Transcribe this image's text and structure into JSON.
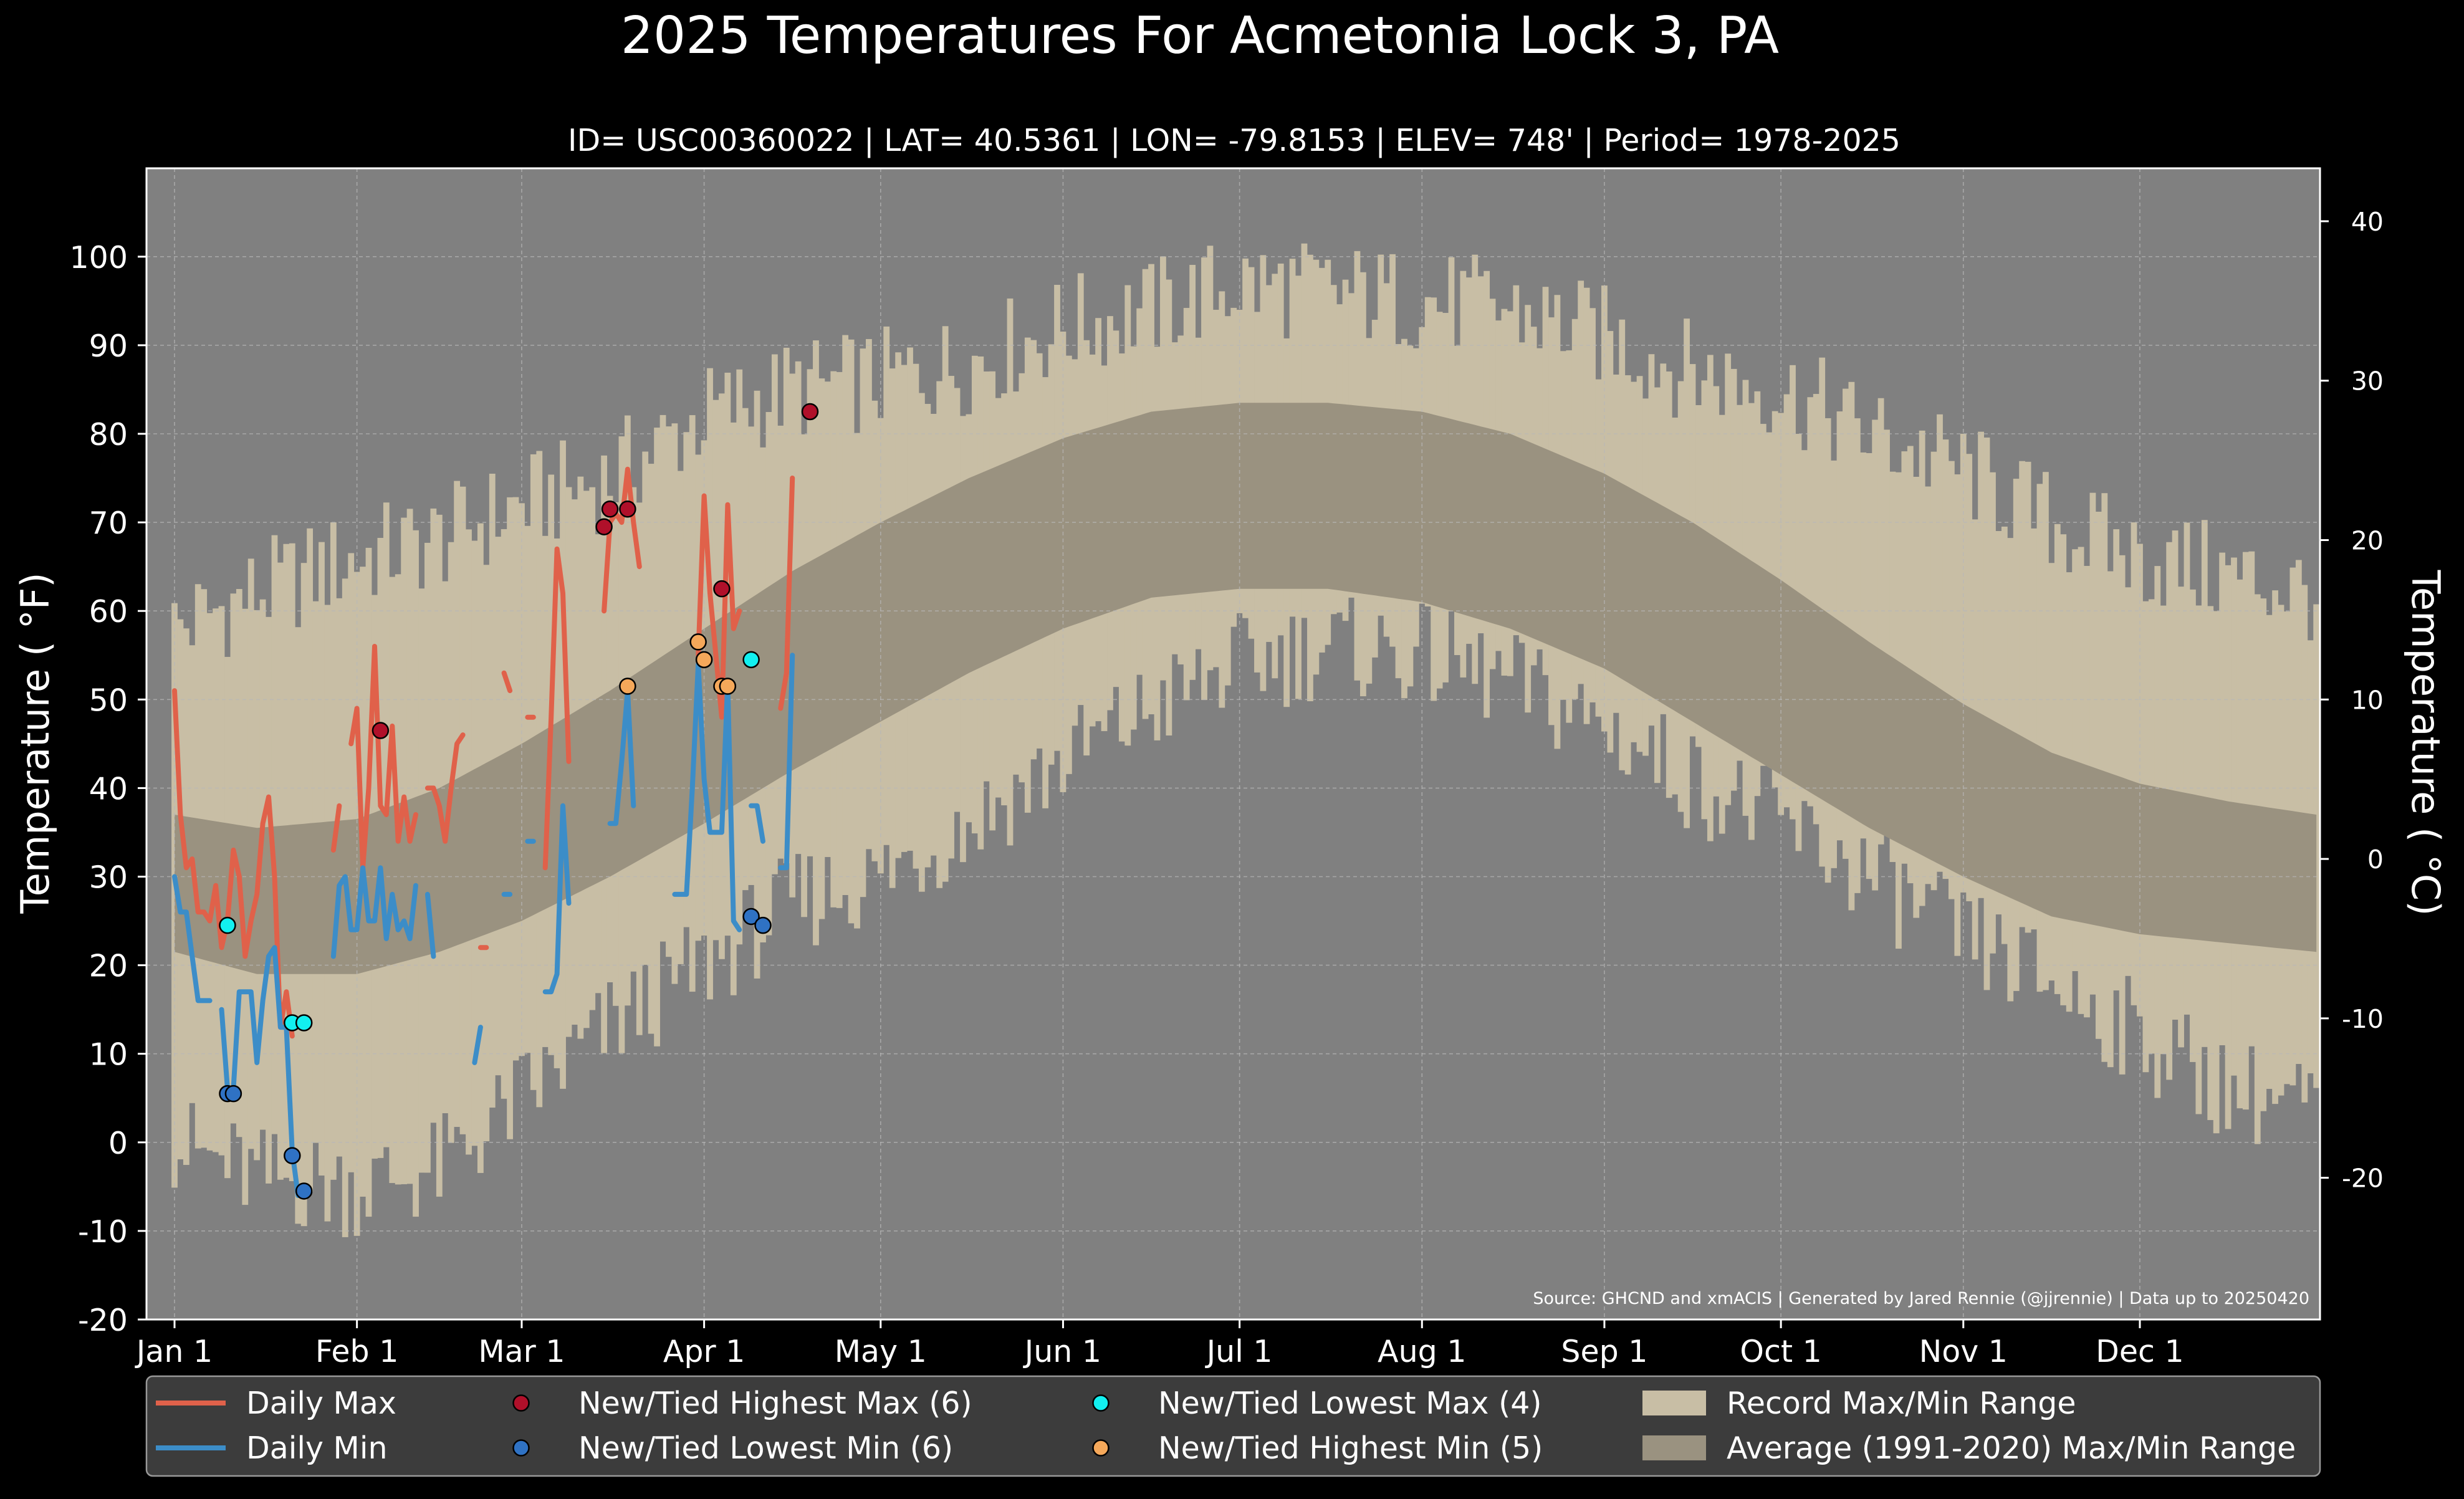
{
  "chart_data": {
    "type": "line",
    "title": "2025 Temperatures For Acmetonia Lock 3, PA",
    "subtitle": "ID= USC00360022 | LAT= 40.5361 | LON= -79.8153 | ELEV= 748' | Period= 1978-2025",
    "ylabel_left": "Temperature ( °F)",
    "ylabel_right": "Temperature ( °C)",
    "source": "Source: GHCND and xmACIS | Generated by Jared Rennie (@jjrennie) | Data up to 20250420",
    "ylim_f": [
      -20,
      110
    ],
    "yticks_f": [
      -20,
      -10,
      0,
      10,
      20,
      30,
      40,
      50,
      60,
      70,
      80,
      90,
      100
    ],
    "yticks_c": [
      -20,
      -10,
      0,
      10,
      20,
      30,
      40
    ],
    "x_months": [
      "Jan 1",
      "Feb 1",
      "Mar 1",
      "Apr 1",
      "May 1",
      "Jun 1",
      "Jul 1",
      "Aug 1",
      "Sep 1",
      "Oct 1",
      "Nov 1",
      "Dec 1"
    ],
    "x_month_start_day": [
      1,
      32,
      60,
      91,
      121,
      152,
      182,
      213,
      244,
      274,
      305,
      335
    ],
    "grid": true,
    "legend_position": "bottom",
    "record_range": {
      "days": [
        1,
        15,
        32,
        46,
        60,
        75,
        91,
        106,
        121,
        136,
        152,
        167,
        182,
        197,
        213,
        228,
        244,
        259,
        274,
        289,
        305,
        320,
        335,
        350,
        365
      ],
      "max": [
        58,
        62,
        66,
        68,
        72,
        75,
        82,
        85,
        86,
        88,
        92,
        94,
        97,
        96,
        95,
        94,
        91,
        87,
        85,
        80,
        76,
        70,
        66,
        64,
        62
      ],
      "min": [
        0,
        -4,
        -5,
        -3,
        5,
        13,
        20,
        27,
        30,
        36,
        43,
        49,
        54,
        56,
        55,
        52,
        47,
        41,
        36,
        30,
        23,
        18,
        12,
        6,
        4
      ]
    },
    "normal_range": {
      "days": [
        1,
        15,
        32,
        46,
        60,
        75,
        91,
        106,
        121,
        136,
        152,
        167,
        182,
        197,
        213,
        228,
        244,
        259,
        274,
        289,
        305,
        320,
        335,
        350,
        365
      ],
      "max": [
        37,
        35.5,
        36.5,
        40,
        45,
        51,
        58,
        64.5,
        70,
        75,
        79.5,
        82.5,
        83.5,
        83.5,
        82.5,
        80,
        75.5,
        70,
        63.5,
        56.5,
        49.5,
        44,
        40.5,
        38.5,
        37
      ],
      "min": [
        21.5,
        19,
        19,
        21.5,
        25,
        30,
        36,
        42,
        47.5,
        53,
        58,
        61.5,
        62.5,
        62.5,
        61,
        58,
        53.5,
        47.5,
        41.5,
        35.5,
        30,
        25.5,
        23.5,
        22.5,
        21.5
      ]
    },
    "series": [
      {
        "name": "Daily Max",
        "color": "#E0614A",
        "x": [
          1,
          2,
          3,
          4,
          5,
          6,
          7,
          8,
          9,
          10,
          11,
          12,
          13,
          14,
          15,
          16,
          17,
          18,
          19,
          20,
          21,
          22,
          23,
          24,
          25,
          28,
          29,
          30,
          31,
          32,
          33,
          34,
          35,
          36,
          37,
          38,
          39,
          40,
          41,
          42,
          43,
          44,
          45,
          46,
          47,
          48,
          49,
          50,
          51,
          52,
          53,
          54,
          55,
          56,
          57,
          58,
          59,
          61,
          62,
          64,
          65,
          66,
          67,
          68,
          69,
          70,
          71,
          72,
          73,
          74,
          75,
          76,
          77,
          78,
          79,
          80,
          81,
          83,
          84,
          85,
          86,
          87,
          88,
          89,
          90,
          91,
          92,
          93,
          94,
          95,
          96,
          97,
          98,
          99,
          100,
          101,
          102,
          103,
          104,
          105,
          106,
          107,
          108,
          109,
          110
        ],
        "y": [
          51,
          37,
          31,
          32,
          26,
          26,
          25,
          29,
          22,
          25,
          33,
          30,
          21,
          25,
          28,
          36,
          39,
          30,
          13,
          17,
          12,
          null,
          null,
          null,
          null,
          33,
          38,
          null,
          45,
          49,
          31,
          40,
          56,
          38,
          37,
          47,
          34,
          39,
          34,
          37,
          null,
          40,
          40,
          38,
          34,
          40,
          45,
          46,
          null,
          null,
          22,
          22,
          null,
          null,
          53,
          51,
          null,
          48,
          48,
          31,
          48,
          67,
          62,
          43,
          null,
          null,
          null,
          null,
          null,
          60,
          70,
          71,
          70,
          76,
          70,
          65,
          null,
          null,
          null,
          null,
          null,
          null,
          null,
          null,
          55,
          73,
          62,
          55,
          48,
          72,
          58,
          60,
          null,
          null,
          null,
          null,
          null,
          null,
          49,
          53,
          75,
          null,
          null,
          null,
          null
        ]
      },
      {
        "name": "Daily Min",
        "color": "#3C8DC8",
        "x": [
          1,
          2,
          3,
          4,
          5,
          6,
          7,
          8,
          9,
          10,
          11,
          12,
          13,
          14,
          15,
          16,
          17,
          18,
          19,
          20,
          21,
          22,
          23,
          24,
          25,
          28,
          29,
          30,
          31,
          32,
          33,
          34,
          35,
          36,
          37,
          38,
          39,
          40,
          41,
          42,
          43,
          44,
          45,
          46,
          47,
          48,
          49,
          50,
          51,
          52,
          53,
          54,
          55,
          56,
          57,
          58,
          59,
          61,
          62,
          64,
          65,
          66,
          67,
          68,
          69,
          70,
          71,
          72,
          73,
          74,
          75,
          76,
          77,
          78,
          79,
          80,
          81,
          83,
          84,
          85,
          86,
          87,
          88,
          89,
          90,
          91,
          92,
          93,
          94,
          95,
          96,
          97,
          98,
          99,
          100,
          101,
          102,
          103,
          104,
          105,
          106,
          107,
          108,
          109,
          110
        ],
        "y": [
          30,
          26,
          26,
          21,
          16,
          16,
          16,
          null,
          15,
          6,
          6,
          17,
          17,
          17,
          9,
          16,
          21,
          22,
          13,
          13,
          -1,
          -6,
          null,
          null,
          null,
          21,
          29,
          30,
          24,
          24,
          31,
          25,
          25,
          31,
          23,
          28,
          24,
          25,
          23,
          29,
          null,
          28,
          21,
          null,
          null,
          null,
          null,
          null,
          null,
          9,
          13,
          null,
          null,
          null,
          28,
          28,
          null,
          34,
          34,
          17,
          17,
          19,
          38,
          27,
          null,
          null,
          null,
          null,
          null,
          null,
          36,
          36,
          43,
          51,
          38,
          null,
          null,
          null,
          null,
          null,
          28,
          28,
          28,
          40,
          54,
          41,
          35,
          35,
          35,
          52,
          25,
          24,
          null,
          38,
          38,
          34,
          null,
          null,
          31,
          31,
          55,
          null,
          null,
          null,
          null
        ]
      }
    ],
    "markers": [
      {
        "name": "New/Tied Highest Max (6)",
        "count": 6,
        "color": "#B0102A",
        "points": [
          [
            36,
            46.5
          ],
          [
            74,
            69.5
          ],
          [
            75,
            71.5
          ],
          [
            78,
            71.5
          ],
          [
            94,
            62.5
          ],
          [
            109,
            82.5
          ]
        ]
      },
      {
        "name": "New/Tied Lowest Min (6)",
        "count": 6,
        "color": "#2F72C4",
        "points": [
          [
            10,
            5.5
          ],
          [
            11,
            5.5
          ],
          [
            21,
            -1.5
          ],
          [
            23,
            -5.5
          ],
          [
            99,
            25.5
          ],
          [
            101,
            24.5
          ]
        ]
      },
      {
        "name": "New/Tied Lowest Max (4)",
        "count": 4,
        "color": "#12F0F0",
        "points": [
          [
            10,
            24.5
          ],
          [
            21,
            13.5
          ],
          [
            23,
            13.5
          ],
          [
            99,
            54.5
          ]
        ]
      },
      {
        "name": "New/Tied Highest Min (5)",
        "count": 5,
        "color": "#F5A85A",
        "points": [
          [
            78,
            51.5
          ],
          [
            90,
            56.5
          ],
          [
            91,
            54.5
          ],
          [
            94,
            51.5
          ],
          [
            95,
            51.5
          ]
        ]
      }
    ],
    "legend_items": [
      {
        "key": "daily_max",
        "label": "Daily Max",
        "kind": "line",
        "color": "#E0614A"
      },
      {
        "key": "daily_min",
        "label": "Daily Min",
        "kind": "line",
        "color": "#3C8DC8"
      },
      {
        "key": "highest_max",
        "label": "New/Tied Highest Max (6)",
        "kind": "dot",
        "color": "#B0102A"
      },
      {
        "key": "lowest_min",
        "label": "New/Tied Lowest Min (6)",
        "kind": "dot",
        "color": "#2F72C4"
      },
      {
        "key": "lowest_max",
        "label": "New/Tied Lowest Max (4)",
        "kind": "dot",
        "color": "#12F0F0"
      },
      {
        "key": "highest_min",
        "label": "New/Tied Highest Min (5)",
        "kind": "dot",
        "color": "#F5A85A"
      },
      {
        "key": "record_range",
        "label": "Record Max/Min Range",
        "kind": "patch",
        "color": "#C8BEA5"
      },
      {
        "key": "normal_range",
        "label": "Average (1991-2020) Max/Min Range",
        "kind": "patch",
        "color": "#9A9280"
      }
    ],
    "colors": {
      "background": "#000000",
      "plot_bg": "#808080",
      "record_fill": "#C8BEA5",
      "normal_fill": "#9A9280",
      "text": "#FFFFFF",
      "legend_bg": "#3C3C3C"
    }
  }
}
